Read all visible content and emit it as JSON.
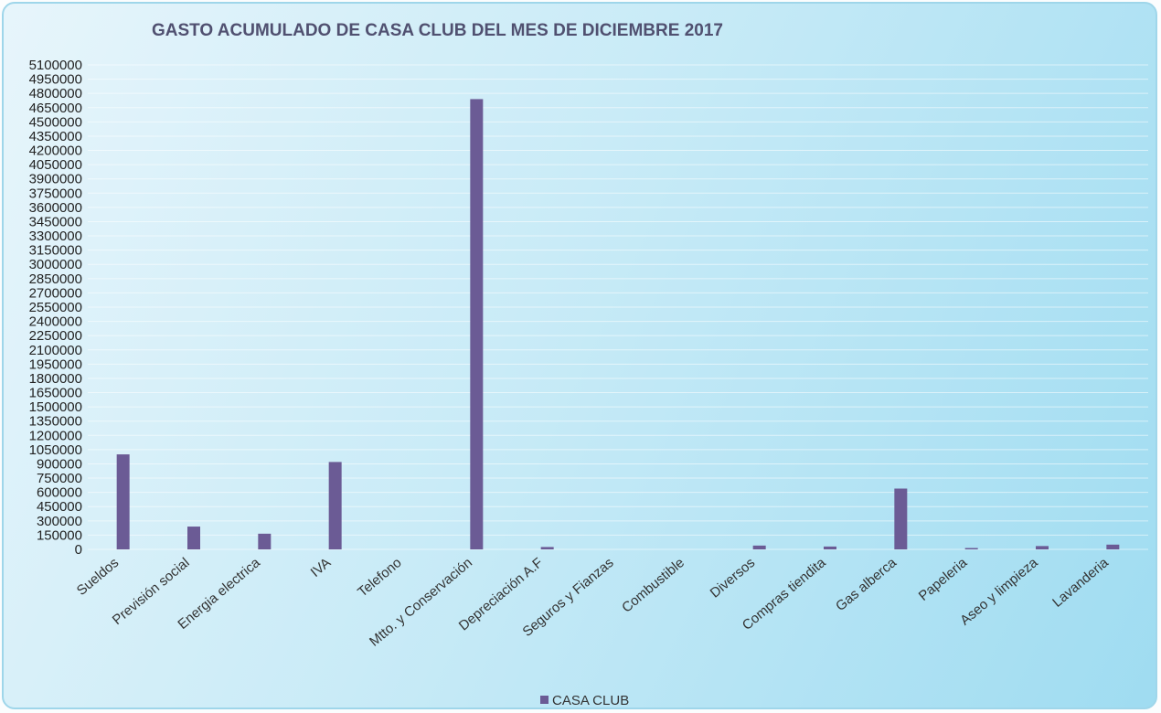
{
  "chart_data": {
    "type": "bar",
    "title": "GASTO ACUMULADO DE CASA CLUB DEL MES DE DICIEMBRE 2017",
    "xlabel": "",
    "ylabel": "",
    "ylim": [
      0,
      5100000
    ],
    "ytick_step": 150000,
    "grid": true,
    "legend_position": "bottom",
    "categories": [
      "Sueldos",
      "Previsión social",
      "Energia electrica",
      "IVA",
      "Telefono",
      "Mtto. y Conservación",
      "Depreciación A.F",
      "Seguros y Fianzas",
      "Combustible",
      "Diversos",
      "Compras tiendita",
      "Gas alberca",
      "Papeleria",
      "Aseo y limpieza",
      "Lavanderia"
    ],
    "series": [
      {
        "name": "CASA CLUB",
        "color": "#6b5b95",
        "values": [
          1000000,
          240000,
          165000,
          920000,
          0,
          4740000,
          25000,
          0,
          0,
          40000,
          30000,
          640000,
          12000,
          35000,
          50000
        ]
      }
    ]
  }
}
